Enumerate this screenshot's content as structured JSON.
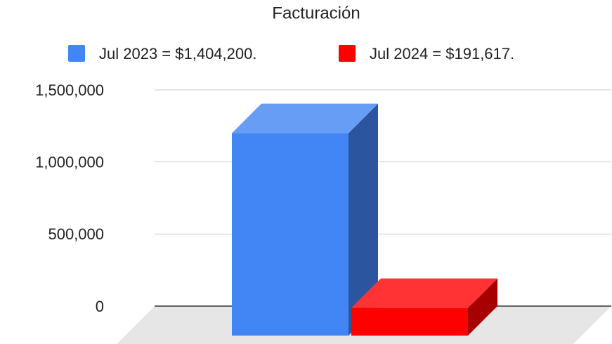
{
  "chart_data": {
    "type": "bar3d",
    "title": "Facturación",
    "series": [
      {
        "name": "Jul 2023 = $1,404,200.",
        "color": "#4285f4",
        "values": [
          1404200
        ]
      },
      {
        "name": "Jul 2024 = $191,617.",
        "color": "#ff0000",
        "values": [
          191617
        ]
      }
    ],
    "ylim": [
      0,
      1500000
    ],
    "yticks": [
      0,
      {
        "value": 500000,
        "label": "500,000"
      },
      {
        "value": 1000000,
        "label": "1,000,000"
      },
      {
        "value": 1500000,
        "label": "1,500,000"
      }
    ],
    "grid": true,
    "legend": "top"
  }
}
